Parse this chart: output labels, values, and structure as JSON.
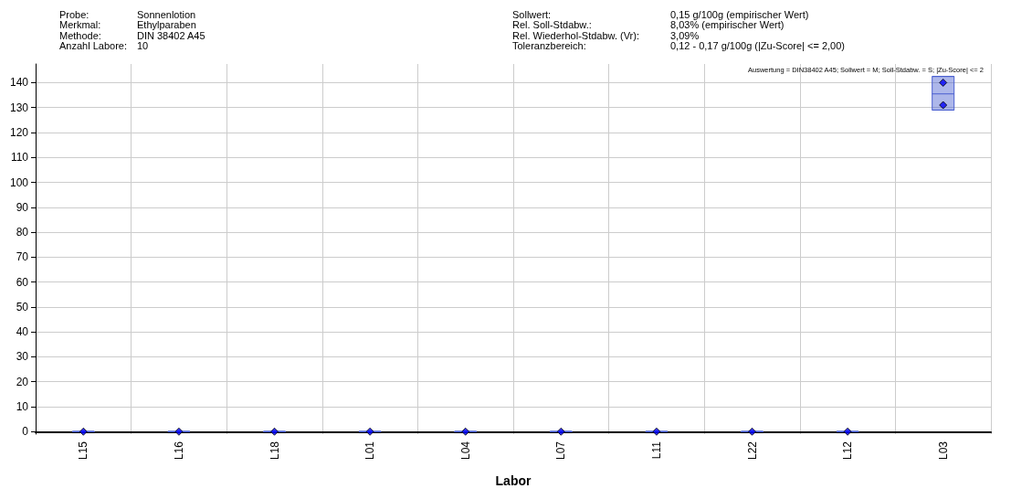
{
  "chart_data": {
    "type": "box",
    "xlabel": "Labor",
    "categories": [
      "L15",
      "L16",
      "L18",
      "L01",
      "L04",
      "L07",
      "L11",
      "L22",
      "L12",
      "L03"
    ],
    "boxes": [
      {
        "low": 0,
        "q1": 0,
        "median": 0,
        "q3": 0,
        "high": 0
      },
      {
        "low": 0,
        "q1": 0,
        "median": 0,
        "q3": 0,
        "high": 0
      },
      {
        "low": 0,
        "q1": 0,
        "median": 0,
        "q3": 0,
        "high": 0
      },
      {
        "low": 0,
        "q1": 0,
        "median": 0,
        "q3": 0,
        "high": 0
      },
      {
        "low": 0,
        "q1": 0,
        "median": 0,
        "q3": 0,
        "high": 0
      },
      {
        "low": 0,
        "q1": 0,
        "median": 0,
        "q3": 0,
        "high": 0
      },
      {
        "low": 0,
        "q1": 0,
        "median": 0,
        "q3": 0,
        "high": 0
      },
      {
        "low": 0,
        "q1": 0,
        "median": 0,
        "q3": 0,
        "high": 0
      },
      {
        "low": 0,
        "q1": 0,
        "median": 0,
        "q3": 0,
        "high": 0
      },
      {
        "low": 129,
        "q1": 129,
        "median": 135.5,
        "q3": 142.5,
        "high": 142.5
      }
    ],
    "color": "#4a5fd0",
    "series": [
      {
        "type": "scatter",
        "color": "#0000ff",
        "x": [
          "L15",
          "L16",
          "L18",
          "L01",
          "L04",
          "L07",
          "L11",
          "L22",
          "L12",
          "L03",
          "L03"
        ],
        "values": [
          0,
          0,
          0,
          0,
          0,
          0,
          0,
          0,
          0,
          140,
          131
        ]
      }
    ],
    "marker": "diamond",
    "ylim": [
      -1,
      147.5
    ],
    "yticks": [
      0,
      10,
      20,
      30,
      40,
      50,
      60,
      70,
      80,
      90,
      100,
      110,
      120,
      130,
      140
    ],
    "grid": true,
    "annotations": [
      "Probe:",
      "Sonnenlotion",
      "Merkmal:",
      "Ethylparaben",
      "Methode:",
      "DIN 38402 A45",
      "Anzahl Labore:",
      "10",
      "Sollwert:",
      "0,15 g/100g (empirischer Wert)",
      "Rel. Soll-Stdabw.:",
      "8,03% (empirischer Wert)",
      "Rel. Wiederhol-Stdabw. (Vr):",
      "3,09%",
      "Toleranzbereich:",
      "0,12 - 0,17 g/100g (|Zu-Score| <= 2,00)",
      "Auswertung = DIN38402 A45; Sollwert = M; Soll-Stdabw. = S; |Zu-Score| <= 2"
    ]
  }
}
